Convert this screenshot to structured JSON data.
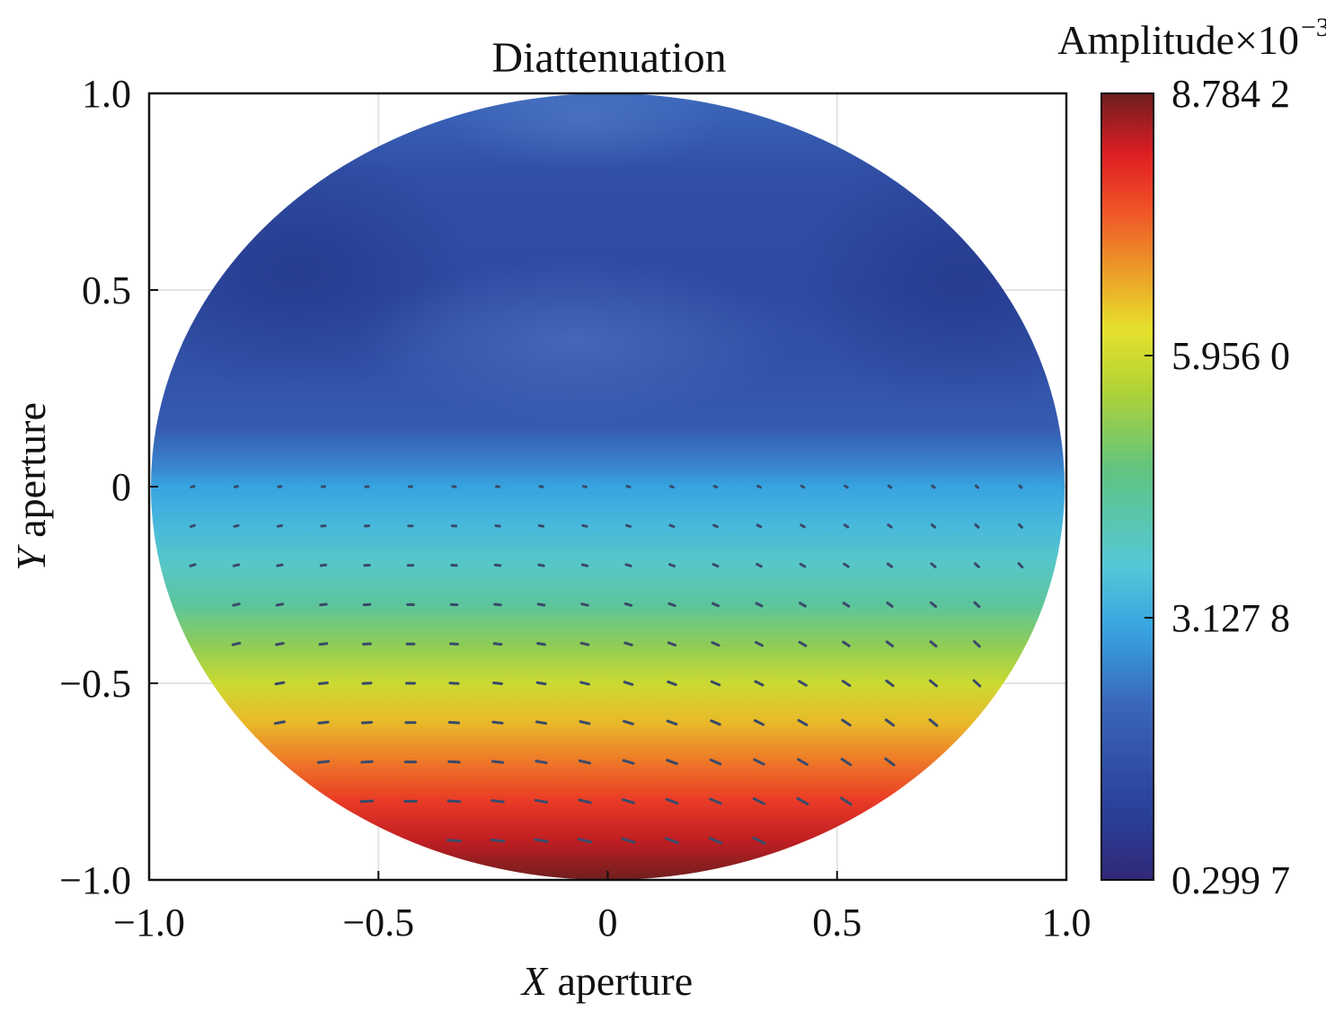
{
  "chart_data": {
    "type": "heatmap",
    "title": "Diattenuation",
    "xlabel": {
      "italic": "X",
      "rest": " aperture"
    },
    "ylabel": {
      "italic": "Y",
      "rest": " aperture"
    },
    "xlim": [
      -1.0,
      1.0
    ],
    "ylim": [
      -1.0,
      1.0
    ],
    "x_ticks": [
      -1.0,
      -0.5,
      0,
      0.5,
      1.0
    ],
    "x_tick_labels": [
      "−1.0",
      "−0.5",
      "0",
      "0.5",
      "1.0"
    ],
    "y_ticks": [
      1.0,
      0.5,
      0,
      -0.5,
      -1.0
    ],
    "y_tick_labels": [
      "1.0",
      "0.5",
      "0",
      "−0.5",
      "−1.0"
    ],
    "grid": true,
    "colorbar": {
      "title": "Amplitude×10",
      "title_exponent": "−3",
      "min": 0.2997,
      "max": 8.7842,
      "ticks": [
        8.7842,
        5.956,
        3.1278,
        0.2997
      ],
      "tick_labels": [
        "8.784 2",
        "5.956 0",
        "3.127 8",
        "0.299 7"
      ],
      "colormap": "jet"
    },
    "field_profile": {
      "y": [
        1.0,
        0.8,
        0.5,
        0.3,
        0.15,
        0.05,
        0.0,
        -0.1,
        -0.2,
        -0.3,
        -0.4,
        -0.5,
        -0.6,
        -0.7,
        -0.8,
        -0.9,
        -1.0
      ],
      "value": [
        2.2,
        1.5,
        1.4,
        1.6,
        1.9,
        2.6,
        3.0,
        3.4,
        3.9,
        4.4,
        5.2,
        5.9,
        6.6,
        7.2,
        7.8,
        8.3,
        8.78
      ],
      "note_pattern": "upper region shows darker corners near (-0.8, 0.6) and (0.8, 0.5) and lighter bump near top center"
    },
    "vector_rows_y": [
      0.0,
      -0.1,
      -0.2,
      -0.3,
      -0.4,
      -0.5,
      -0.6,
      -0.7,
      -0.8,
      -0.9
    ],
    "vector_spacing_x": 0.095
  }
}
